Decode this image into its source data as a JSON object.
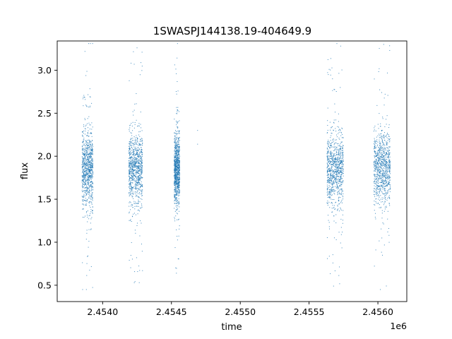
{
  "chart_data": {
    "type": "scatter",
    "title": "1SWASPJ144138.19-404649.9",
    "xlabel": "time",
    "ylabel": "flux",
    "x_offset_label": "1e6",
    "xlim": [
      2.45367,
      2.45621
    ],
    "ylim": [
      0.31,
      3.34
    ],
    "x_ticks": [
      2.454,
      2.4545,
      2.455,
      2.4555,
      2.456
    ],
    "x_tick_labels": [
      "2.4540",
      "2.4545",
      "2.4550",
      "2.4555",
      "2.4560"
    ],
    "y_ticks": [
      0.5,
      1.0,
      1.5,
      2.0,
      2.5,
      3.0
    ],
    "y_tick_labels": [
      "0.5",
      "1.0",
      "1.5",
      "2.0",
      "2.5",
      "3.0"
    ],
    "grid": false,
    "point_color": "#1f77b4",
    "clusters": [
      {
        "x_start": 2.45385,
        "x_end": 2.45393,
        "flux_center": 1.85,
        "flux_spread": 0.22,
        "flux_min": 0.45,
        "flux_max": 3.31
      },
      {
        "x_start": 2.45419,
        "x_end": 2.45429,
        "flux_center": 1.85,
        "flux_spread": 0.2,
        "flux_min": 0.53,
        "flux_max": 3.26
      },
      {
        "x_start": 2.45452,
        "x_end": 2.45456,
        "flux_center": 1.85,
        "flux_spread": 0.2,
        "flux_min": 0.64,
        "flux_max": 3.31
      },
      {
        "x_start": 2.45563,
        "x_end": 2.45575,
        "flux_center": 1.85,
        "flux_spread": 0.2,
        "flux_min": 0.49,
        "flux_max": 3.31
      },
      {
        "x_start": 2.45597,
        "x_end": 2.45609,
        "flux_center": 1.87,
        "flux_spread": 0.2,
        "flux_min": 0.45,
        "flux_max": 3.3
      }
    ],
    "isolated_points": [
      {
        "x": 2.45469,
        "y": 2.3
      },
      {
        "x": 2.45469,
        "y": 2.14
      }
    ]
  }
}
